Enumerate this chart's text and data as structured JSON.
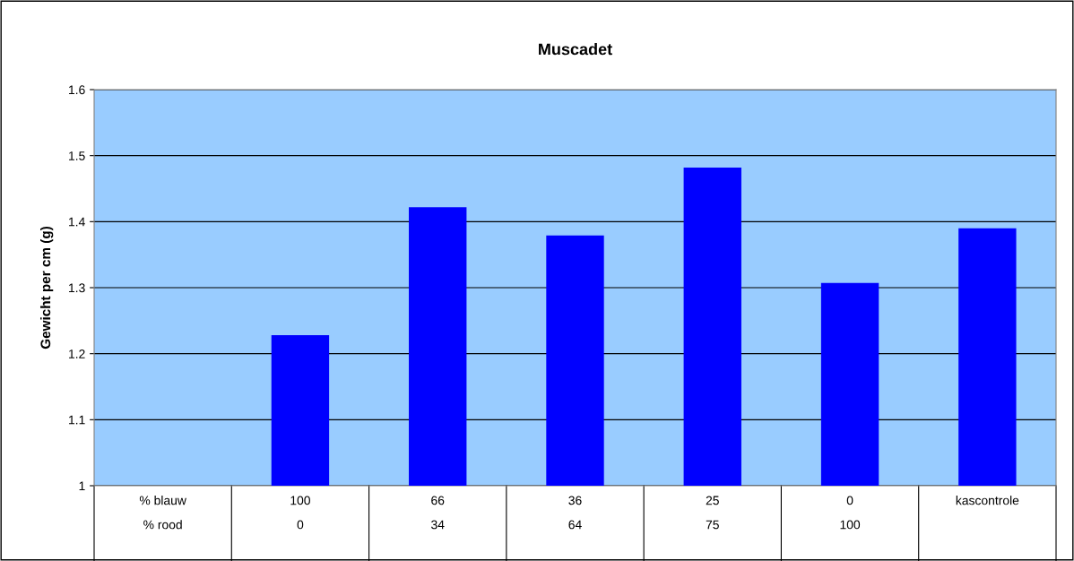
{
  "chart_data": {
    "type": "bar",
    "title": "Muscadet",
    "ylabel": "Gewicht per cm (g)",
    "categories": [
      "% blauw\n% rood",
      "100\n0",
      "66\n34",
      "36\n64",
      "25\n75",
      "0\n100",
      "kascontrole"
    ],
    "values": [
      null,
      1.228,
      1.422,
      1.379,
      1.482,
      1.307,
      1.39
    ],
    "color": "#0000ff",
    "ylim": [
      1,
      1.6
    ],
    "yticks": [
      1,
      1.1,
      1.2,
      1.3,
      1.4,
      1.5,
      1.6
    ],
    "grid": "y",
    "legend": false
  }
}
